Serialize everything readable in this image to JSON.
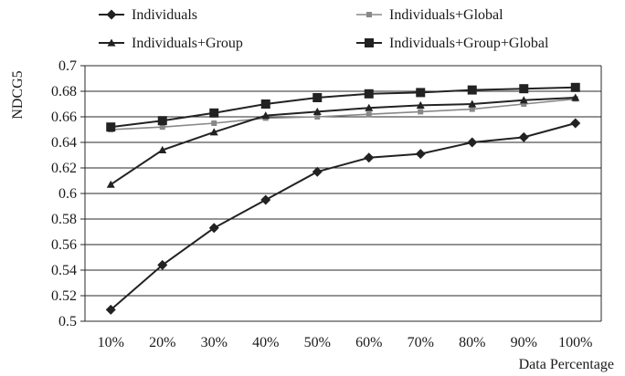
{
  "chart_data": {
    "type": "line",
    "categories": [
      "10%",
      "20%",
      "30%",
      "40%",
      "50%",
      "60%",
      "70%",
      "80%",
      "90%",
      "100%"
    ],
    "series": [
      {
        "name": "Individuals",
        "marker": "diamond",
        "color": "#222222",
        "values": [
          0.509,
          0.544,
          0.573,
          0.595,
          0.617,
          0.628,
          0.631,
          0.64,
          0.644,
          0.655
        ]
      },
      {
        "name": "Individuals+Global",
        "marker": "small-square",
        "color": "#888888",
        "values": [
          0.65,
          0.652,
          0.655,
          0.659,
          0.66,
          0.662,
          0.664,
          0.666,
          0.67,
          0.674
        ]
      },
      {
        "name": "Individuals+Group",
        "marker": "triangle",
        "color": "#222222",
        "values": [
          0.607,
          0.634,
          0.648,
          0.661,
          0.664,
          0.667,
          0.669,
          0.67,
          0.673,
          0.675
        ]
      },
      {
        "name": "Individuals+Group+Global",
        "marker": "square",
        "color": "#222222",
        "values": [
          0.652,
          0.657,
          0.663,
          0.67,
          0.675,
          0.678,
          0.679,
          0.681,
          0.682,
          0.683
        ]
      }
    ],
    "title": "",
    "xlabel": "Data Percentage",
    "ylabel": "NDCG5",
    "ylim": [
      0.5,
      0.7
    ],
    "yticks": [
      "0.5",
      "0.52",
      "0.54",
      "0.56",
      "0.58",
      "0.6",
      "0.62",
      "0.64",
      "0.66",
      "0.68",
      "0.7"
    ],
    "grid": "horizontal",
    "legend": "top, two columns"
  }
}
